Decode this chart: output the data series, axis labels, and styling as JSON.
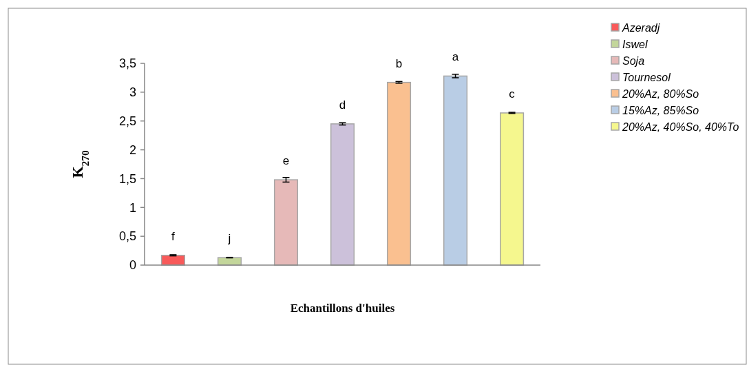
{
  "chart_data": {
    "type": "bar",
    "xlabel": "Echantillons d'huiles",
    "ylabel": "K$_{270}$",
    "categories": [
      null,
      null,
      null,
      null,
      null,
      null,
      null
    ],
    "series": [
      {
        "name": "Azeradj",
        "color": "#f85a5a",
        "values": [
          0.17,
          null,
          null,
          null,
          null,
          null,
          null
        ],
        "errors": [
          0.01,
          null,
          null,
          null,
          null,
          null,
          null
        ],
        "value_labels": [
          "f",
          null,
          null,
          null,
          null,
          null,
          null
        ]
      },
      {
        "name": "Iswel",
        "color": "#c3d69b",
        "values": [
          null,
          0.13,
          null,
          null,
          null,
          null,
          null
        ],
        "errors": [
          null,
          0.005,
          null,
          null,
          null,
          null,
          null
        ],
        "value_labels": [
          null,
          "j",
          null,
          null,
          null,
          null,
          null
        ]
      },
      {
        "name": "Soja",
        "color": "#e6b9b8",
        "values": [
          null,
          null,
          1.48,
          null,
          null,
          null,
          null
        ],
        "errors": [
          null,
          null,
          0.04,
          null,
          null,
          null,
          null
        ],
        "value_labels": [
          null,
          null,
          "e",
          null,
          null,
          null,
          null
        ]
      },
      {
        "name": "Tournesol",
        "color": "#ccc1da",
        "values": [
          null,
          null,
          null,
          2.45,
          null,
          null,
          null
        ],
        "errors": [
          null,
          null,
          null,
          0.02,
          null,
          null,
          null
        ],
        "value_labels": [
          null,
          null,
          null,
          "d",
          null,
          null,
          null
        ]
      },
      {
        "name": "20%Az, 80%So",
        "color": "#fac090",
        "values": [
          null,
          null,
          null,
          null,
          3.17,
          null,
          null
        ],
        "errors": [
          null,
          null,
          null,
          null,
          0.015,
          null,
          null
        ],
        "value_labels": [
          null,
          null,
          null,
          null,
          "b",
          null,
          null
        ]
      },
      {
        "name": "15%Az, 85%So",
        "color": "#b9cde5",
        "values": [
          null,
          null,
          null,
          null,
          null,
          3.28,
          null
        ],
        "errors": [
          null,
          null,
          null,
          null,
          null,
          0.03,
          null
        ],
        "value_labels": [
          null,
          null,
          null,
          null,
          null,
          "a",
          null
        ]
      },
      {
        "name": "20%Az, 40%So, 40%To",
        "color": "#f5f78e",
        "values": [
          null,
          null,
          null,
          null,
          null,
          null,
          2.64
        ],
        "errors": [
          null,
          null,
          null,
          null,
          null,
          null,
          0.01
        ],
        "value_labels": [
          null,
          null,
          null,
          null,
          null,
          null,
          "c"
        ]
      }
    ],
    "ylim": [
      0,
      3.5
    ],
    "yticks": [
      0,
      {
        "value": 0.5,
        "label": "0,5"
      },
      1,
      {
        "value": 1.5,
        "label": "1,5"
      },
      2,
      {
        "value": 2.5,
        "label": "2,5"
      },
      3,
      {
        "value": 3.5,
        "label": "3,5"
      }
    ],
    "legend": "right",
    "grid": false
  }
}
